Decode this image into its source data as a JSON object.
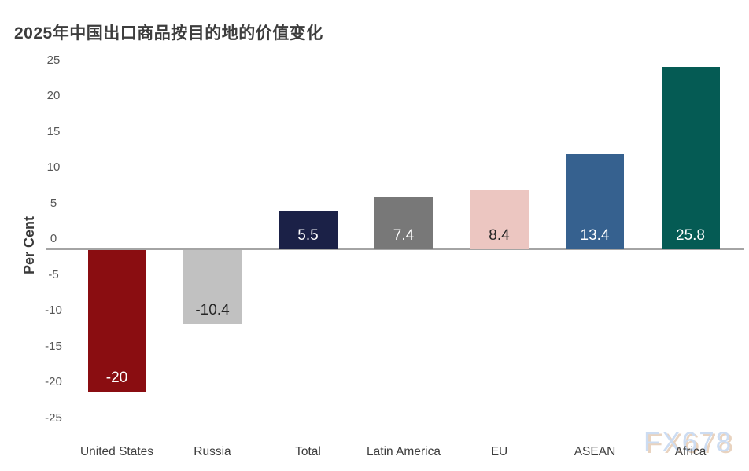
{
  "title": "2025年中国出口商品按目的地的价值变化",
  "watermark": {
    "text": "FX678",
    "color": "#ccdcf2",
    "shadow_color": "#e9d3bf"
  },
  "chart_data": {
    "type": "bar",
    "title": "2025年中国出口商品按目的地的价值变化",
    "xlabel": "",
    "ylabel": "Per Cent",
    "ylim": [
      -25,
      25
    ],
    "ytick_step": 5,
    "yticks": [
      25,
      20,
      15,
      10,
      5,
      0,
      -5,
      -10,
      -15,
      -20,
      -25
    ],
    "grid": false,
    "legend": null,
    "categories": [
      "United States",
      "Russia",
      "Total",
      "Latin America",
      "EU",
      "ASEAN",
      "Africa"
    ],
    "values": [
      -20,
      -10.4,
      5.5,
      7.4,
      8.4,
      13.4,
      25.8
    ],
    "value_labels": [
      "-20",
      "-10.4",
      "5.5",
      "7.4",
      "8.4",
      "13.4",
      "25.8"
    ],
    "bar_colors": [
      "#8a0d11",
      "#c1c1c1",
      "#1b2147",
      "#787878",
      "#ecc6c1",
      "#36618f",
      "#055b54"
    ],
    "value_label_colors": [
      "#ffffff",
      "#262626",
      "#ffffff",
      "#ffffff",
      "#262626",
      "#ffffff",
      "#ffffff"
    ],
    "baseline_color": "#a4a4a4"
  }
}
